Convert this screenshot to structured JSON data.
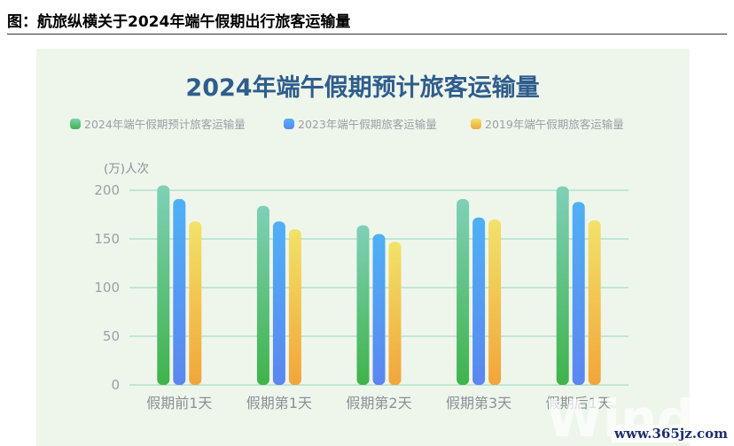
{
  "caption": "图：航旅纵横关于2024年端午假期出行旅客运输量",
  "site_watermark": "www.365jz.com",
  "logo_watermark": "Wind",
  "colors": {
    "series_2024": [
      "#7fd0b8",
      "#3fb34a"
    ],
    "series_2023": [
      "#4fb0f5",
      "#5b86f0"
    ],
    "series_2019": [
      "#f2e26a",
      "#f2a53a"
    ],
    "panel_bg": "#eef6ec",
    "title": "#2f5d8c",
    "grid": "#a6dcc8"
  },
  "chart_data": {
    "type": "bar",
    "title": "2024年端午假期预计旅客运输量",
    "ylabel": "(万)人次",
    "xlabel": "",
    "ylim": [
      0,
      200
    ],
    "yticks": [
      0,
      50,
      100,
      150,
      200
    ],
    "categories": [
      "假期前1天",
      "假期第1天",
      "假期第2天",
      "假期第3天",
      "假期后1天"
    ],
    "series": [
      {
        "name": "2024年端午假期预计旅客运输量",
        "values": [
          205,
          184,
          164,
          191,
          204
        ]
      },
      {
        "name": "2023年端午假期旅客运输量",
        "values": [
          191,
          168,
          155,
          172,
          188
        ]
      },
      {
        "name": "2019年端午假期旅客运输量",
        "values": [
          168,
          160,
          147,
          170,
          169
        ]
      }
    ],
    "grid": true,
    "legend_position": "top"
  }
}
